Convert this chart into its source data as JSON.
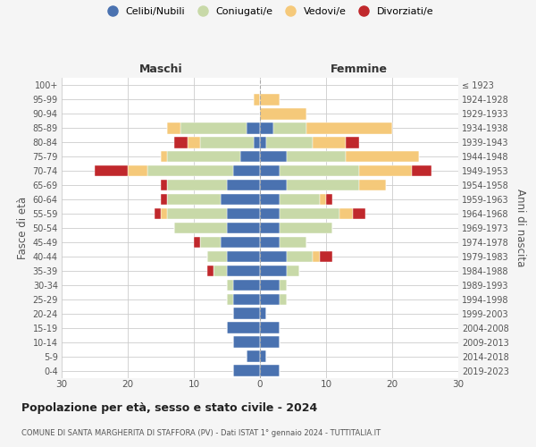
{
  "age_groups": [
    "0-4",
    "5-9",
    "10-14",
    "15-19",
    "20-24",
    "25-29",
    "30-34",
    "35-39",
    "40-44",
    "45-49",
    "50-54",
    "55-59",
    "60-64",
    "65-69",
    "70-74",
    "75-79",
    "80-84",
    "85-89",
    "90-94",
    "95-99",
    "100+"
  ],
  "birth_years": [
    "2019-2023",
    "2014-2018",
    "2009-2013",
    "2004-2008",
    "1999-2003",
    "1994-1998",
    "1989-1993",
    "1984-1988",
    "1979-1983",
    "1974-1978",
    "1969-1973",
    "1964-1968",
    "1959-1963",
    "1954-1958",
    "1949-1953",
    "1944-1948",
    "1939-1943",
    "1934-1938",
    "1929-1933",
    "1924-1928",
    "≤ 1923"
  ],
  "colors": {
    "celibi": "#4a72b0",
    "coniugati": "#c8d9a8",
    "vedovi": "#f5c97a",
    "divorziati": "#c0282c"
  },
  "maschi": {
    "celibi": [
      4,
      2,
      4,
      5,
      4,
      4,
      4,
      5,
      5,
      6,
      5,
      5,
      6,
      5,
      4,
      3,
      1,
      2,
      0,
      0,
      0
    ],
    "coniugati": [
      0,
      0,
      0,
      0,
      0,
      1,
      1,
      2,
      3,
      3,
      8,
      9,
      8,
      9,
      13,
      11,
      8,
      10,
      0,
      0,
      0
    ],
    "vedovi": [
      0,
      0,
      0,
      0,
      0,
      0,
      0,
      0,
      0,
      0,
      0,
      1,
      0,
      0,
      3,
      1,
      2,
      2,
      0,
      1,
      0
    ],
    "divorziati": [
      0,
      0,
      0,
      0,
      0,
      0,
      0,
      1,
      0,
      1,
      0,
      1,
      1,
      1,
      5,
      0,
      2,
      0,
      0,
      0,
      0
    ]
  },
  "femmine": {
    "celibi": [
      3,
      1,
      3,
      3,
      1,
      3,
      3,
      4,
      4,
      3,
      3,
      3,
      3,
      4,
      3,
      4,
      1,
      2,
      0,
      0,
      0
    ],
    "coniugati": [
      0,
      0,
      0,
      0,
      0,
      1,
      1,
      2,
      4,
      4,
      8,
      9,
      6,
      11,
      12,
      9,
      7,
      5,
      0,
      0,
      0
    ],
    "vedovi": [
      0,
      0,
      0,
      0,
      0,
      0,
      0,
      0,
      1,
      0,
      0,
      2,
      1,
      4,
      8,
      11,
      5,
      13,
      7,
      3,
      0
    ],
    "divorziati": [
      0,
      0,
      0,
      0,
      0,
      0,
      0,
      0,
      2,
      0,
      0,
      2,
      1,
      0,
      3,
      0,
      2,
      0,
      0,
      0,
      0
    ]
  },
  "xlim": 30,
  "title": "Popolazione per età, sesso e stato civile - 2024",
  "subtitle": "COMUNE DI SANTA MARGHERITA DI STAFFORA (PV) - Dati ISTAT 1° gennaio 2024 - TUTTITALIA.IT",
  "ylabel_left": "Fasce di età",
  "ylabel_right": "Anni di nascita",
  "xlabel_maschi": "Maschi",
  "xlabel_femmine": "Femmine",
  "legend_labels": [
    "Celibi/Nubili",
    "Coniugati/e",
    "Vedovi/e",
    "Divorziati/e"
  ],
  "bg_color": "#f5f5f5",
  "plot_bg": "#ffffff"
}
